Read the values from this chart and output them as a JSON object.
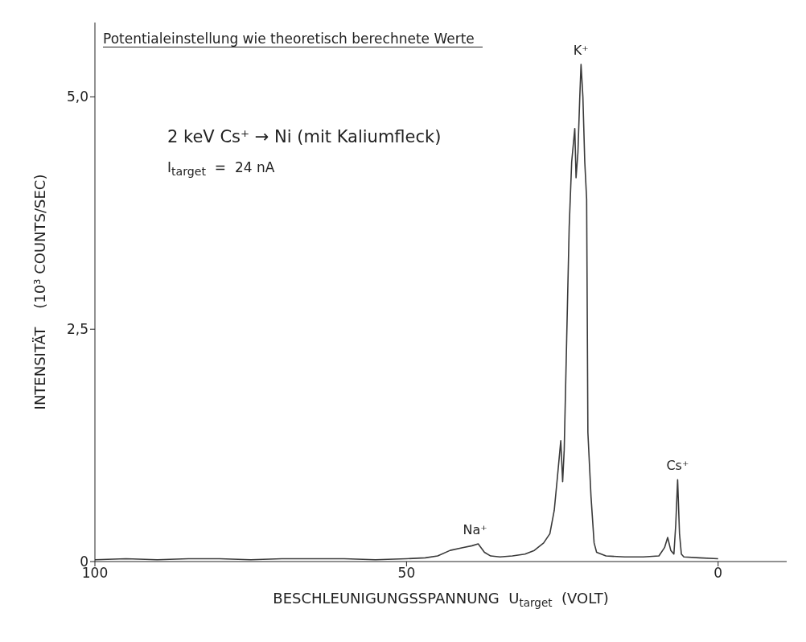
{
  "chart_data": {
    "type": "line",
    "xlabel": "BESCHLEUNIGUNGSSPANNUNG  U$_{target}$  (VOLT)",
    "ylabel": "INTENSITÄT    (10³ COUNTS/SEC)",
    "xlim": [
      100,
      -11
    ],
    "xticks": [
      100,
      50,
      0
    ],
    "ylim": [
      0,
      5.8
    ],
    "yticks": [
      0,
      {
        "value": 2.5,
        "label": "2,5"
      },
      {
        "value": 5,
        "label": "5,0"
      }
    ],
    "annotations": [
      "Potentialeinstellung wie theoretisch berechnete Werte",
      "2 keV Cs⁺ → Ni (mit Kaliumfleck)",
      "I$_{target}$  =  24 nA",
      {
        "text": "Na⁺",
        "x": 39,
        "y": 0.19
      },
      {
        "text": "K⁺",
        "x": 22,
        "y": 5.35
      },
      {
        "text": "Cs⁺",
        "x": 6.5,
        "y": 0.88
      }
    ],
    "series": [
      {
        "color": "#3a3a3a",
        "x": [
          100,
          95,
          90,
          85,
          80,
          75,
          70,
          65,
          60,
          55,
          50,
          47,
          45,
          43,
          41,
          39.5,
          38.5,
          37.5,
          36.5,
          35,
          33,
          31,
          29.5,
          28,
          27,
          26.3,
          25.8,
          25.25,
          24.95,
          24.7,
          24.3,
          23.9,
          23.5,
          23.0,
          22.8,
          22.5,
          22.2,
          22.0,
          21.7,
          21.4,
          21.1,
          20.9,
          20.4,
          19.9,
          19.5,
          18,
          15,
          12,
          9.5,
          8.6,
          8.1,
          7.6,
          7.1,
          6.8,
          6.5,
          6.2,
          5.9,
          5.5,
          3,
          0
        ],
        "values": [
          0.02,
          0.03,
          0.02,
          0.03,
          0.03,
          0.02,
          0.03,
          0.03,
          0.03,
          0.02,
          0.03,
          0.04,
          0.06,
          0.12,
          0.15,
          0.17,
          0.19,
          0.1,
          0.06,
          0.05,
          0.06,
          0.08,
          0.12,
          0.2,
          0.3,
          0.55,
          0.9,
          1.3,
          0.86,
          1.2,
          2.4,
          3.6,
          4.3,
          4.66,
          4.13,
          4.4,
          5.0,
          5.35,
          5.0,
          4.3,
          3.9,
          1.39,
          0.7,
          0.2,
          0.1,
          0.06,
          0.05,
          0.05,
          0.06,
          0.15,
          0.26,
          0.12,
          0.08,
          0.4,
          0.88,
          0.3,
          0.08,
          0.05,
          0.04,
          0.03
        ]
      }
    ]
  }
}
